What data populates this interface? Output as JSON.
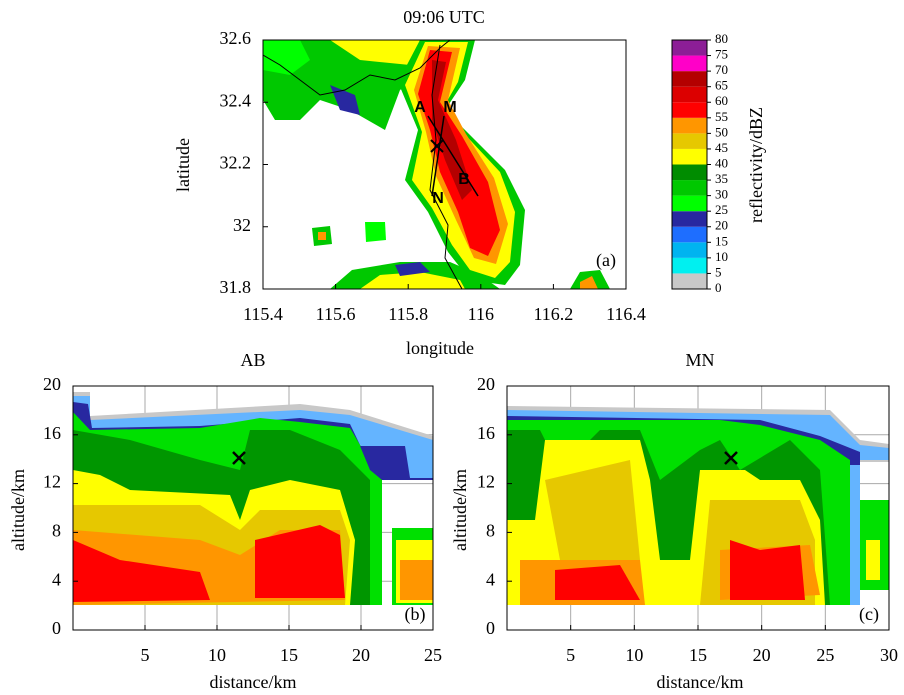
{
  "chart_data": [
    {
      "type": "heatmap",
      "title": "09:06 UTC",
      "x_label": "longitude",
      "y_label": "latitude",
      "xlim": [
        115.4,
        116.4
      ],
      "xticks": [
        115.4,
        115.6,
        115.8,
        116,
        116.2,
        116.4
      ],
      "ylim": [
        31.8,
        32.6
      ],
      "yticks": [
        31.8,
        32,
        32.2,
        32.4,
        32.6
      ],
      "grid": false,
      "panel_label": "(a)",
      "point_labels": [
        "A",
        "M",
        "B",
        "N"
      ],
      "colorbar": {
        "label": "reflectivity/dBZ",
        "ticks": [
          0,
          5,
          10,
          15,
          20,
          25,
          30,
          35,
          40,
          45,
          50,
          55,
          60,
          65,
          70,
          75,
          80
        ],
        "colors": [
          "#c8c8c8",
          "#00f0f0",
          "#00b4f0",
          "#1e6eff",
          "#2828a0",
          "#00ff00",
          "#00c800",
          "#008c00",
          "#ffff00",
          "#e6c800",
          "#ff9600",
          "#ff0000",
          "#dc0000",
          "#b40000",
          "#ff00c8",
          "#8c1e96",
          "#e6e6e6"
        ]
      }
    },
    {
      "type": "heatmap",
      "title": "AB",
      "x_label": "distance/km",
      "y_label": "altitude/km",
      "xlim": [
        0,
        25
      ],
      "xticks": [
        5,
        10,
        15,
        20,
        25
      ],
      "ylim": [
        0,
        20
      ],
      "yticks": [
        0,
        4,
        8,
        12,
        16,
        20
      ],
      "grid": true,
      "panel_label": "(b)"
    },
    {
      "type": "heatmap",
      "title": "MN",
      "x_label": "distance/km",
      "y_label": "altitude/km",
      "xlim": [
        0,
        30
      ],
      "xticks": [
        5,
        10,
        15,
        20,
        25,
        30
      ],
      "ylim": [
        0,
        20
      ],
      "yticks": [
        0,
        4,
        8,
        12,
        16,
        20
      ],
      "grid": true,
      "panel_label": "(c)"
    }
  ]
}
